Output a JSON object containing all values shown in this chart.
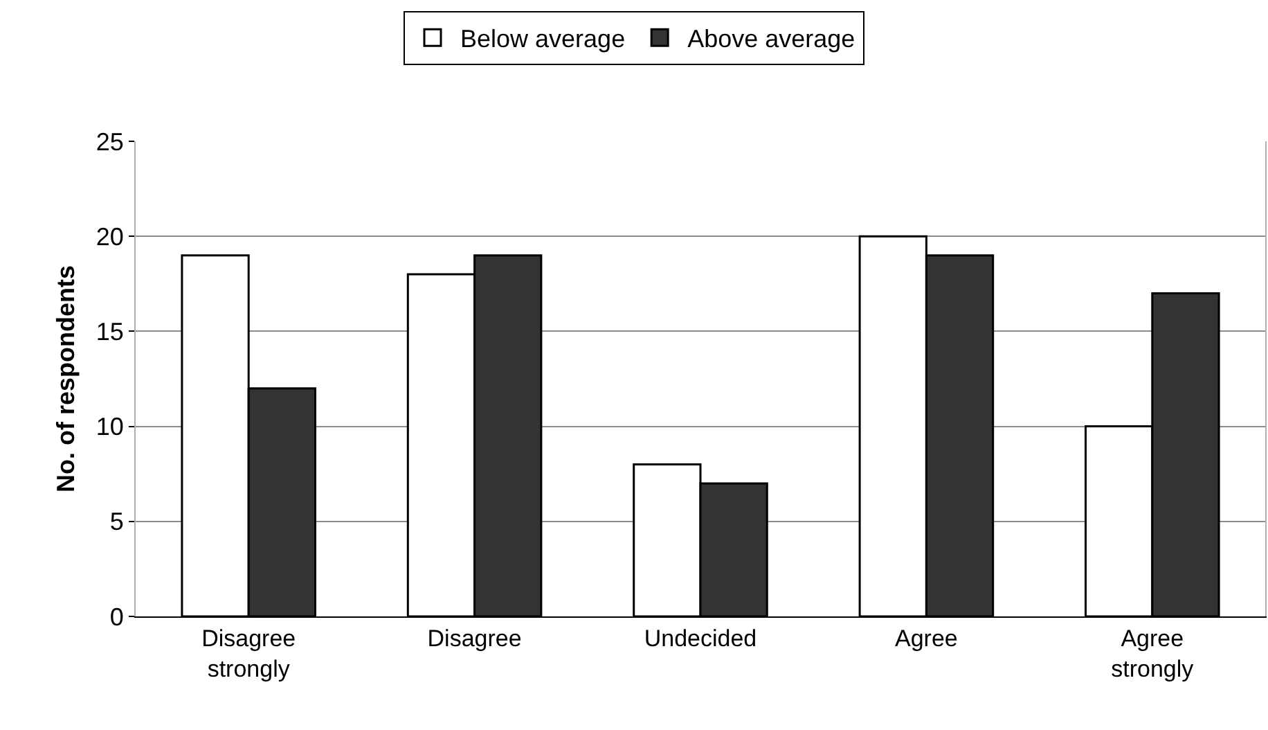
{
  "chart_data": {
    "type": "bar",
    "ylabel": "No. of respondents",
    "categories": [
      "Disagree strongly",
      "Disagree",
      "Undecided",
      "Agree",
      "Agree strongly"
    ],
    "series": [
      {
        "name": "Below average",
        "color": "#ffffff",
        "values": [
          19,
          18,
          8,
          20,
          10
        ]
      },
      {
        "name": "Above average",
        "color": "#333333",
        "values": [
          12,
          19,
          7,
          19,
          17
        ]
      }
    ],
    "ylim": [
      0,
      25
    ],
    "yticks": [
      0,
      5,
      10,
      15,
      20,
      25
    ],
    "grid": "y",
    "legend": "top"
  }
}
